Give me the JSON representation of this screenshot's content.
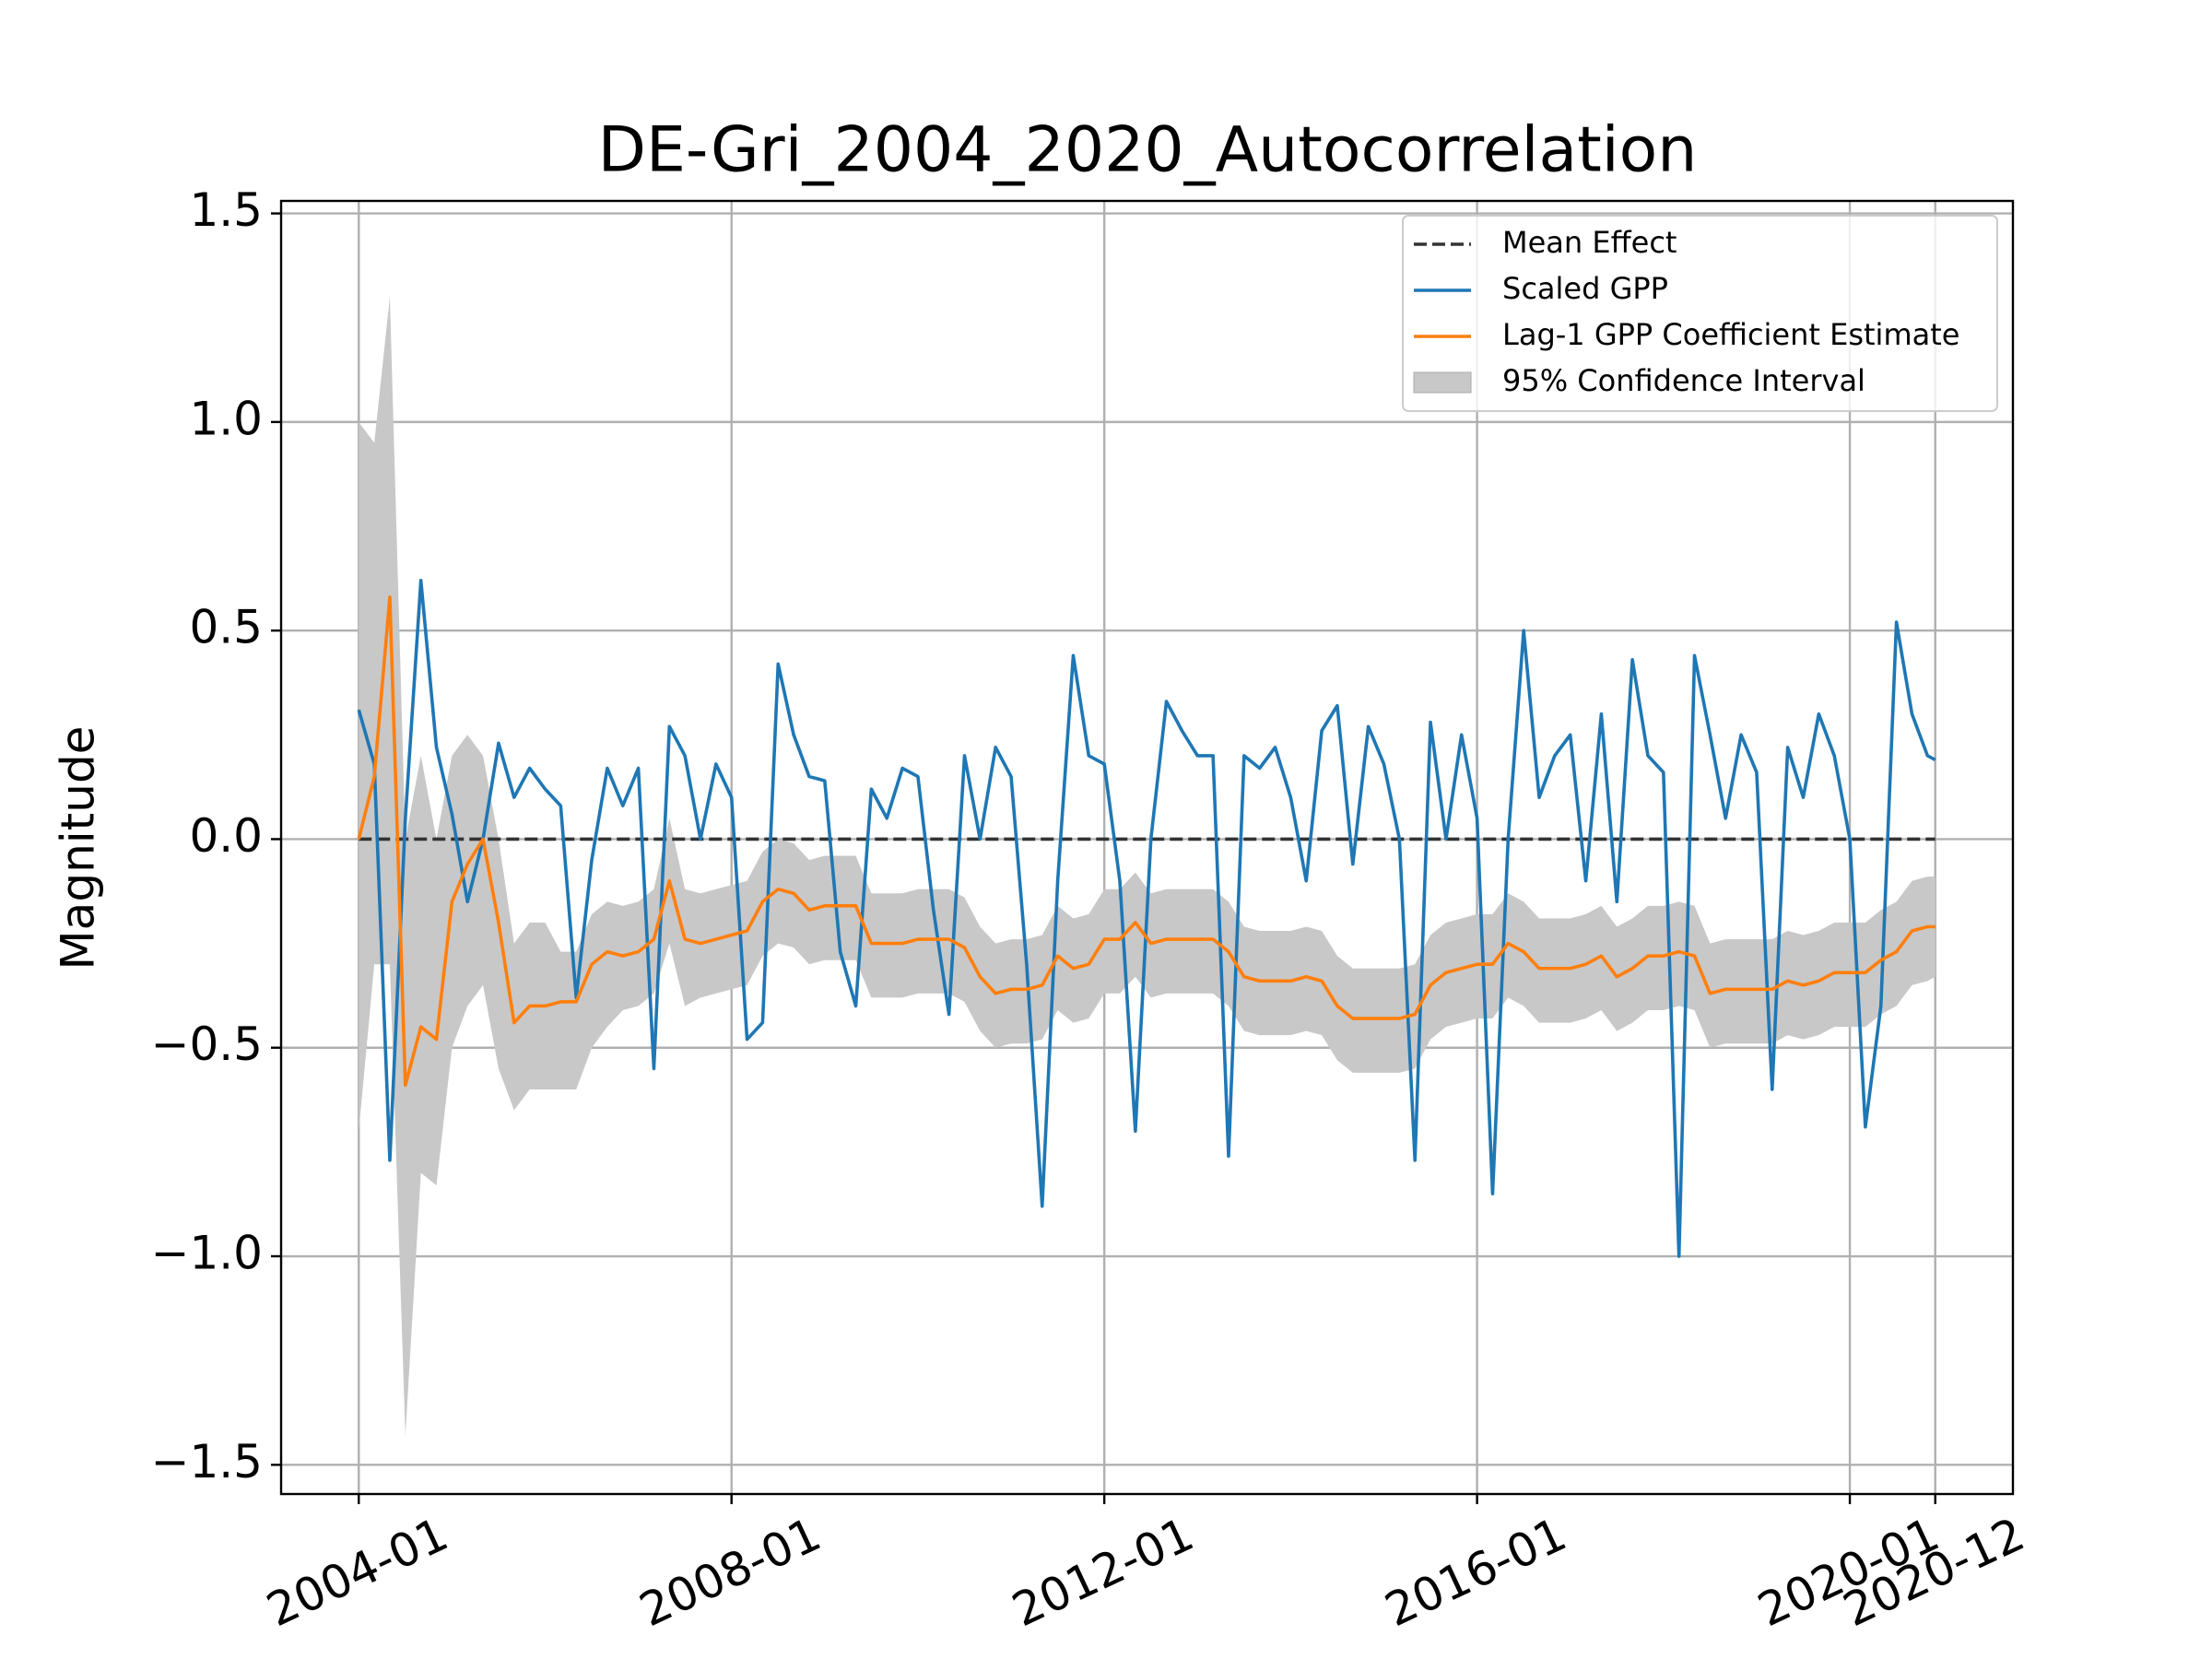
{
  "chart_data": {
    "type": "line",
    "title": "DE-Gri_2004_2020_Autocorrelation",
    "ylabel": "Magnitude",
    "x": [
      "2004-01",
      "2004-03",
      "2004-05",
      "2004-07",
      "2004-09",
      "2004-11",
      "2005-01",
      "2005-03",
      "2005-05",
      "2005-07",
      "2005-09",
      "2005-11",
      "2006-01",
      "2006-03",
      "2006-05",
      "2006-07",
      "2006-09",
      "2006-11",
      "2007-01",
      "2007-03",
      "2007-05",
      "2007-07",
      "2007-09",
      "2007-11",
      "2008-01",
      "2008-03",
      "2008-05",
      "2008-07",
      "2008-09",
      "2008-11",
      "2009-01",
      "2009-03",
      "2009-05",
      "2009-07",
      "2009-09",
      "2009-11",
      "2010-01",
      "2010-03",
      "2010-05",
      "2010-07",
      "2010-09",
      "2010-11",
      "2011-01",
      "2011-03",
      "2011-05",
      "2011-07",
      "2011-09",
      "2011-11",
      "2012-01",
      "2012-03",
      "2012-05",
      "2012-07",
      "2012-09",
      "2012-11",
      "2013-01",
      "2013-03",
      "2013-05",
      "2013-07",
      "2013-09",
      "2013-11",
      "2014-01",
      "2014-03",
      "2014-05",
      "2014-07",
      "2014-09",
      "2014-11",
      "2015-01",
      "2015-03",
      "2015-05",
      "2015-07",
      "2015-09",
      "2015-11",
      "2016-01",
      "2016-03",
      "2016-05",
      "2016-07",
      "2016-09",
      "2016-11",
      "2017-01",
      "2017-03",
      "2017-05",
      "2017-07",
      "2017-09",
      "2017-11",
      "2018-01",
      "2018-03",
      "2018-05",
      "2018-07",
      "2018-09",
      "2018-11",
      "2019-01",
      "2019-03",
      "2019-05",
      "2019-07",
      "2019-09",
      "2019-11",
      "2020-01",
      "2020-03",
      "2020-05",
      "2020-07",
      "2020-09",
      "2020-11",
      "2020-12"
    ],
    "series": [
      {
        "name": "Mean Effect",
        "color": "#333333",
        "dashed": true,
        "x": [
          "2004-01",
          "2020-12"
        ],
        "values": [
          0,
          0
        ]
      },
      {
        "name": "Scaled GPP",
        "color": "#1f77b4",
        "values": [
          0.31,
          0.18,
          -0.77,
          0.05,
          0.62,
          0.22,
          0.06,
          -0.15,
          0.0,
          0.23,
          0.1,
          0.17,
          0.12,
          0.08,
          -0.38,
          -0.05,
          0.17,
          0.08,
          0.17,
          -0.55,
          0.27,
          0.2,
          0.0,
          0.18,
          0.1,
          -0.48,
          -0.44,
          0.42,
          0.25,
          0.15,
          0.14,
          -0.27,
          -0.4,
          0.12,
          0.05,
          0.17,
          0.15,
          -0.17,
          -0.42,
          0.2,
          0.0,
          0.22,
          0.15,
          -0.3,
          -0.88,
          -0.1,
          0.44,
          0.2,
          0.18,
          -0.1,
          -0.7,
          0.0,
          0.33,
          0.26,
          0.2,
          0.2,
          -0.76,
          0.2,
          0.17,
          0.22,
          0.1,
          -0.1,
          0.26,
          0.32,
          -0.06,
          0.27,
          0.18,
          0.0,
          -0.77,
          0.28,
          0.0,
          0.25,
          0.05,
          -0.85,
          0.0,
          0.5,
          0.1,
          0.2,
          0.25,
          -0.1,
          0.3,
          -0.15,
          0.43,
          0.2,
          0.16,
          -1.0,
          0.44,
          0.25,
          0.05,
          0.25,
          0.16,
          -0.6,
          0.22,
          0.1,
          0.3,
          0.2,
          0.0,
          -0.69,
          -0.4,
          0.52,
          0.3,
          0.2,
          0.19
        ]
      },
      {
        "name": "Lag-1 GPP Coefficient Estimate",
        "color": "#ff7f0e",
        "values": [
          0,
          0.15,
          0.58,
          -0.59,
          -0.45,
          -0.48,
          -0.15,
          -0.06,
          0.0,
          -0.2,
          -0.44,
          -0.4,
          -0.4,
          -0.39,
          -0.39,
          -0.3,
          -0.27,
          -0.28,
          -0.27,
          -0.24,
          -0.1,
          -0.24,
          -0.25,
          -0.24,
          -0.23,
          -0.22,
          -0.15,
          -0.12,
          -0.13,
          -0.17,
          -0.16,
          -0.16,
          -0.16,
          -0.25,
          -0.25,
          -0.25,
          -0.24,
          -0.24,
          -0.24,
          -0.26,
          -0.33,
          -0.37,
          -0.36,
          -0.36,
          -0.35,
          -0.28,
          -0.31,
          -0.3,
          -0.24,
          -0.24,
          -0.2,
          -0.25,
          -0.24,
          -0.24,
          -0.24,
          -0.24,
          -0.27,
          -0.33,
          -0.34,
          -0.34,
          -0.34,
          -0.33,
          -0.34,
          -0.4,
          -0.43,
          -0.43,
          -0.43,
          -0.43,
          -0.42,
          -0.35,
          -0.32,
          -0.31,
          -0.3,
          -0.3,
          -0.25,
          -0.27,
          -0.31,
          -0.31,
          -0.31,
          -0.3,
          -0.28,
          -0.33,
          -0.31,
          -0.28,
          -0.28,
          -0.27,
          -0.28,
          -0.37,
          -0.36,
          -0.36,
          -0.36,
          -0.36,
          -0.34,
          -0.35,
          -0.34,
          -0.32,
          -0.32,
          -0.32,
          -0.29,
          -0.27,
          -0.22,
          -0.21,
          -0.21
        ]
      }
    ],
    "band": {
      "name": "95% Confidence Interval",
      "color": "#c8c8c8",
      "upper": [
        1.0,
        0.95,
        1.3,
        0.0,
        0.2,
        0.0,
        0.2,
        0.25,
        0.2,
        0.0,
        -0.25,
        -0.2,
        -0.2,
        -0.27,
        -0.27,
        -0.18,
        -0.15,
        -0.16,
        -0.15,
        -0.12,
        0.05,
        -0.12,
        -0.13,
        -0.12,
        -0.11,
        -0.1,
        -0.03,
        0.0,
        -0.01,
        -0.05,
        -0.04,
        -0.04,
        -0.04,
        -0.13,
        -0.13,
        -0.13,
        -0.12,
        -0.12,
        -0.12,
        -0.14,
        -0.21,
        -0.25,
        -0.24,
        -0.24,
        -0.23,
        -0.16,
        -0.19,
        -0.18,
        -0.12,
        -0.12,
        -0.08,
        -0.13,
        -0.12,
        -0.12,
        -0.12,
        -0.12,
        -0.15,
        -0.21,
        -0.22,
        -0.22,
        -0.22,
        -0.21,
        -0.22,
        -0.28,
        -0.31,
        -0.31,
        -0.31,
        -0.31,
        -0.3,
        -0.23,
        -0.2,
        -0.19,
        -0.18,
        -0.18,
        -0.13,
        -0.15,
        -0.19,
        -0.19,
        -0.19,
        -0.18,
        -0.16,
        -0.21,
        -0.19,
        -0.16,
        -0.16,
        -0.15,
        -0.16,
        -0.25,
        -0.24,
        -0.24,
        -0.24,
        -0.24,
        -0.22,
        -0.23,
        -0.22,
        -0.2,
        -0.2,
        -0.2,
        -0.17,
        -0.15,
        -0.1,
        -0.09,
        -0.09
      ],
      "lower": [
        -0.7,
        -0.3,
        -0.3,
        -1.43,
        -0.8,
        -0.83,
        -0.5,
        -0.4,
        -0.35,
        -0.55,
        -0.65,
        -0.6,
        -0.6,
        -0.6,
        -0.6,
        -0.5,
        -0.45,
        -0.41,
        -0.4,
        -0.37,
        -0.25,
        -0.4,
        -0.38,
        -0.37,
        -0.36,
        -0.35,
        -0.28,
        -0.25,
        -0.26,
        -0.3,
        -0.29,
        -0.29,
        -0.29,
        -0.38,
        -0.38,
        -0.38,
        -0.37,
        -0.37,
        -0.37,
        -0.39,
        -0.46,
        -0.5,
        -0.49,
        -0.49,
        -0.48,
        -0.41,
        -0.44,
        -0.43,
        -0.37,
        -0.37,
        -0.33,
        -0.38,
        -0.37,
        -0.37,
        -0.37,
        -0.37,
        -0.4,
        -0.46,
        -0.47,
        -0.47,
        -0.47,
        -0.46,
        -0.47,
        -0.53,
        -0.56,
        -0.56,
        -0.56,
        -0.56,
        -0.55,
        -0.48,
        -0.45,
        -0.44,
        -0.43,
        -0.43,
        -0.38,
        -0.4,
        -0.44,
        -0.44,
        -0.44,
        -0.43,
        -0.41,
        -0.46,
        -0.44,
        -0.41,
        -0.41,
        -0.4,
        -0.41,
        -0.5,
        -0.49,
        -0.49,
        -0.49,
        -0.49,
        -0.47,
        -0.48,
        -0.47,
        -0.45,
        -0.45,
        -0.45,
        -0.42,
        -0.4,
        -0.35,
        -0.34,
        -0.33
      ]
    },
    "xlim": [
      "2003-03",
      "2021-10"
    ],
    "xticks": [
      "2004-01",
      "2008-01",
      "2012-01",
      "2016-01",
      "2020-01",
      "2020-12"
    ],
    "ylim": [
      -1.57,
      1.53
    ],
    "yticks": [
      {
        "value": -1.5,
        "label": "−1.5"
      },
      {
        "value": -1,
        "label": "−1.0"
      },
      {
        "value": -0.5,
        "label": "−0.5"
      },
      {
        "value": 0,
        "label": "0.0"
      },
      0.5,
      {
        "value": 1,
        "label": "1.0"
      },
      1.5
    ],
    "grid": true,
    "legend": "upper right"
  }
}
